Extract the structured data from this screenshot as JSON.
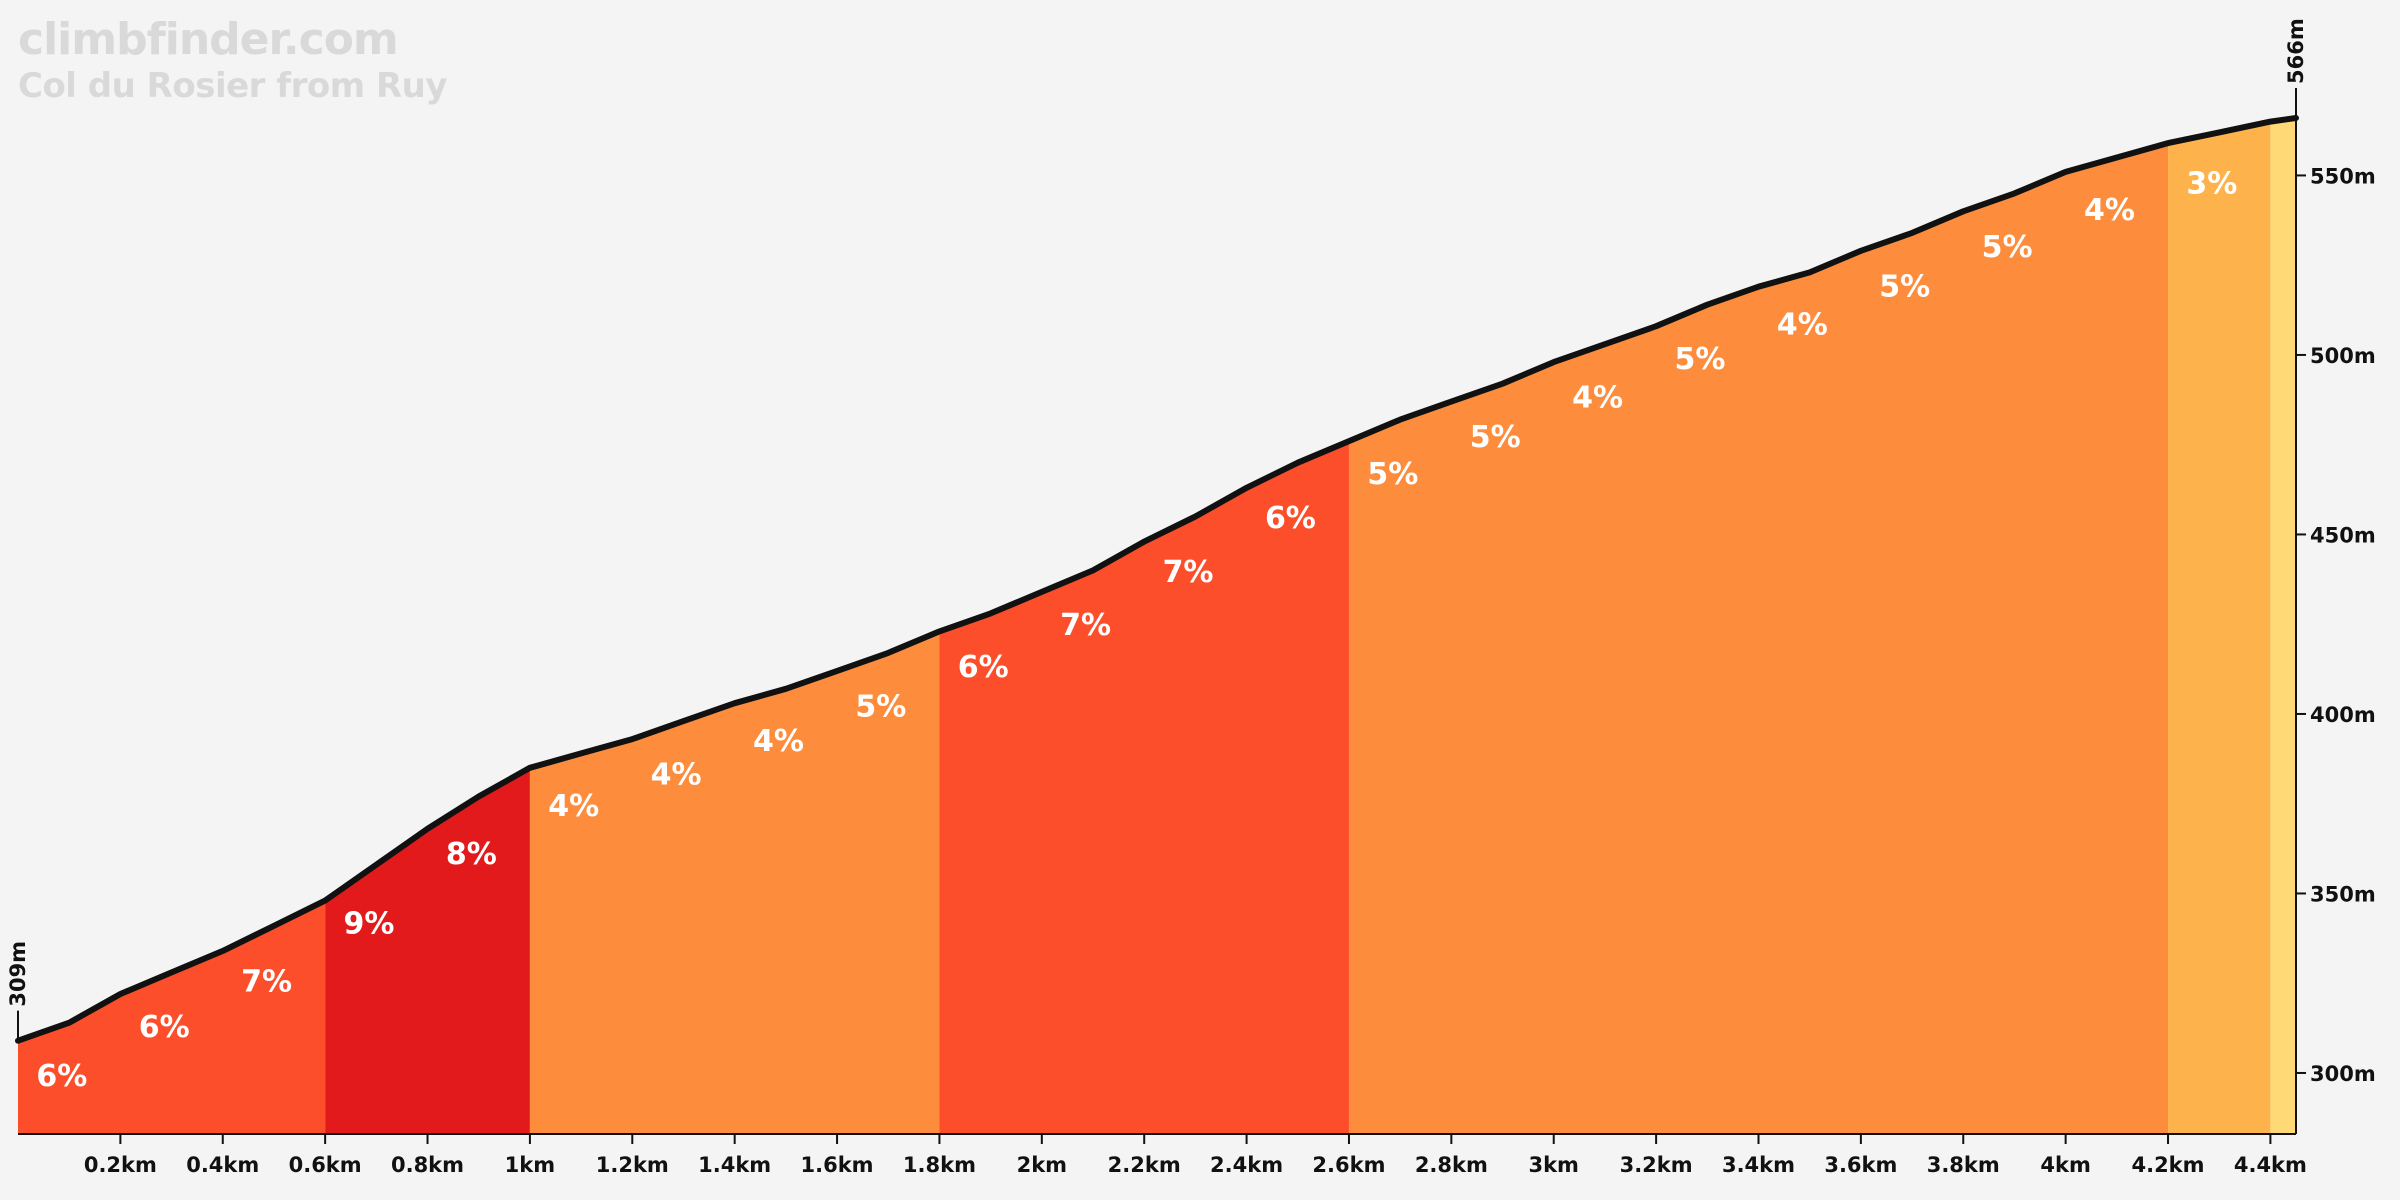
{
  "brand": {
    "site": "climbfinder.com",
    "climb": "Col du Rosier from Ruy"
  },
  "chart_data": {
    "type": "area",
    "title": "Col du Rosier from Ruy",
    "xlabel": "",
    "ylabel": "",
    "xlim": [
      0,
      4.45
    ],
    "ylim": [
      283,
      566
    ],
    "x_tick_labels": [
      "0.2km",
      "0.4km",
      "0.6km",
      "0.8km",
      "1km",
      "1.2km",
      "1.4km",
      "1.6km",
      "1.8km",
      "2km",
      "2.2km",
      "2.4km",
      "2.6km",
      "2.8km",
      "3km",
      "3.2km",
      "3.4km",
      "3.6km",
      "3.8km",
      "4km",
      "4.2km",
      "4.4km"
    ],
    "x_ticks": [
      0.2,
      0.4,
      0.6,
      0.8,
      1.0,
      1.2,
      1.4,
      1.6,
      1.8,
      2.0,
      2.2,
      2.4,
      2.6,
      2.8,
      3.0,
      3.2,
      3.4,
      3.6,
      3.8,
      4.0,
      4.2,
      4.4
    ],
    "y_tick_labels": [
      "300m",
      "350m",
      "400m",
      "450m",
      "500m",
      "550m"
    ],
    "y_ticks": [
      300,
      350,
      400,
      450,
      500,
      550
    ],
    "start_label": "309m",
    "end_label": "566m",
    "profile": [
      {
        "x": 0.0,
        "y": 309
      },
      {
        "x": 0.1,
        "y": 314
      },
      {
        "x": 0.2,
        "y": 322
      },
      {
        "x": 0.3,
        "y": 328
      },
      {
        "x": 0.4,
        "y": 334
      },
      {
        "x": 0.5,
        "y": 341
      },
      {
        "x": 0.6,
        "y": 348
      },
      {
        "x": 0.7,
        "y": 358
      },
      {
        "x": 0.8,
        "y": 368
      },
      {
        "x": 0.9,
        "y": 377
      },
      {
        "x": 1.0,
        "y": 385
      },
      {
        "x": 1.1,
        "y": 389
      },
      {
        "x": 1.2,
        "y": 393
      },
      {
        "x": 1.3,
        "y": 398
      },
      {
        "x": 1.4,
        "y": 403
      },
      {
        "x": 1.5,
        "y": 407
      },
      {
        "x": 1.6,
        "y": 412
      },
      {
        "x": 1.7,
        "y": 417
      },
      {
        "x": 1.8,
        "y": 423
      },
      {
        "x": 1.9,
        "y": 428
      },
      {
        "x": 2.0,
        "y": 434
      },
      {
        "x": 2.1,
        "y": 440
      },
      {
        "x": 2.2,
        "y": 448
      },
      {
        "x": 2.3,
        "y": 455
      },
      {
        "x": 2.4,
        "y": 463
      },
      {
        "x": 2.5,
        "y": 470
      },
      {
        "x": 2.6,
        "y": 476
      },
      {
        "x": 2.7,
        "y": 482
      },
      {
        "x": 2.8,
        "y": 487
      },
      {
        "x": 2.9,
        "y": 492
      },
      {
        "x": 3.0,
        "y": 498
      },
      {
        "x": 3.1,
        "y": 503
      },
      {
        "x": 3.2,
        "y": 508
      },
      {
        "x": 3.3,
        "y": 514
      },
      {
        "x": 3.4,
        "y": 519
      },
      {
        "x": 3.5,
        "y": 523
      },
      {
        "x": 3.6,
        "y": 529
      },
      {
        "x": 3.7,
        "y": 534
      },
      {
        "x": 3.8,
        "y": 540
      },
      {
        "x": 3.9,
        "y": 545
      },
      {
        "x": 4.0,
        "y": 551
      },
      {
        "x": 4.1,
        "y": 555
      },
      {
        "x": 4.2,
        "y": 559
      },
      {
        "x": 4.3,
        "y": 562
      },
      {
        "x": 4.4,
        "y": 565
      },
      {
        "x": 4.45,
        "y": 566
      }
    ],
    "segments": [
      {
        "start": 0.0,
        "end": 0.6,
        "color": "#fc4e2a"
      },
      {
        "start": 0.6,
        "end": 1.0,
        "color": "#e31a1c"
      },
      {
        "start": 1.0,
        "end": 1.8,
        "color": "#fd8d3c"
      },
      {
        "start": 1.8,
        "end": 2.6,
        "color": "#fc4e2a"
      },
      {
        "start": 2.6,
        "end": 4.2,
        "color": "#fd8d3c"
      },
      {
        "start": 4.2,
        "end": 4.4,
        "color": "#feb24c"
      },
      {
        "start": 4.4,
        "end": 4.45,
        "color": "#fed976"
      }
    ],
    "gradient_labels": [
      {
        "x": 0.07,
        "label": "6%"
      },
      {
        "x": 0.27,
        "label": "6%"
      },
      {
        "x": 0.47,
        "label": "7%"
      },
      {
        "x": 0.67,
        "label": "9%"
      },
      {
        "x": 0.87,
        "label": "8%"
      },
      {
        "x": 1.07,
        "label": "4%"
      },
      {
        "x": 1.27,
        "label": "4%"
      },
      {
        "x": 1.47,
        "label": "4%"
      },
      {
        "x": 1.67,
        "label": "5%"
      },
      {
        "x": 1.87,
        "label": "6%"
      },
      {
        "x": 2.07,
        "label": "7%"
      },
      {
        "x": 2.27,
        "label": "7%"
      },
      {
        "x": 2.47,
        "label": "6%"
      },
      {
        "x": 2.67,
        "label": "5%"
      },
      {
        "x": 2.87,
        "label": "5%"
      },
      {
        "x": 3.07,
        "label": "4%"
      },
      {
        "x": 3.27,
        "label": "5%"
      },
      {
        "x": 3.47,
        "label": "4%"
      },
      {
        "x": 3.67,
        "label": "5%"
      },
      {
        "x": 3.87,
        "label": "5%"
      },
      {
        "x": 4.07,
        "label": "4%"
      },
      {
        "x": 4.27,
        "label": "3%"
      }
    ]
  }
}
